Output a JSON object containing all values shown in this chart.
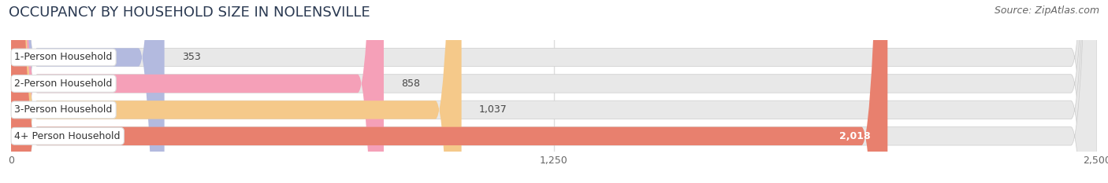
{
  "title": "OCCUPANCY BY HOUSEHOLD SIZE IN NOLENSVILLE",
  "source": "Source: ZipAtlas.com",
  "categories": [
    "1-Person Household",
    "2-Person Household",
    "3-Person Household",
    "4+ Person Household"
  ],
  "values": [
    353,
    858,
    1037,
    2018
  ],
  "bar_colors": [
    "#b3badf",
    "#f5a0b8",
    "#f5c98a",
    "#e8806e"
  ],
  "xlim": [
    0,
    2500
  ],
  "xticks": [
    0,
    1250,
    2500
  ],
  "bg_color": "#ffffff",
  "bar_bg_color": "#e8e8e8",
  "title_fontsize": 13,
  "source_fontsize": 9,
  "label_fontsize": 9,
  "value_fontsize": 9,
  "value_inside_threshold": 1800
}
